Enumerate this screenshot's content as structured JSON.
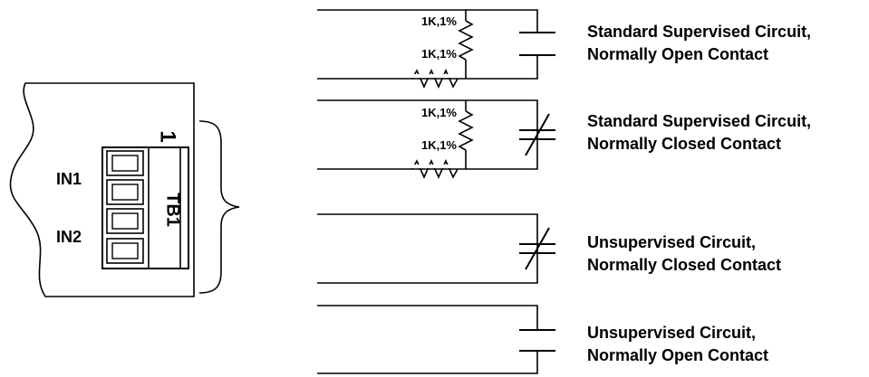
{
  "terminal_block": {
    "label": "TB1",
    "pin_number": "1",
    "input_labels": [
      "IN1",
      "IN2"
    ]
  },
  "resistor_label": "1K,1%",
  "circuits": [
    {
      "line1": "Standard Supervised Circuit,",
      "line2": "Normally Open Contact",
      "resistors": [
        "1K,1%",
        "1K,1%"
      ]
    },
    {
      "line1": "Standard Supervised Circuit,",
      "line2": "Normally Closed Contact",
      "resistors": [
        "1K,1%",
        "1K,1%"
      ]
    },
    {
      "line1": "Unsupervised Circuit,",
      "line2": "Normally Closed Contact"
    },
    {
      "line1": "Unsupervised Circuit,",
      "line2": "Normally Open Contact"
    }
  ]
}
